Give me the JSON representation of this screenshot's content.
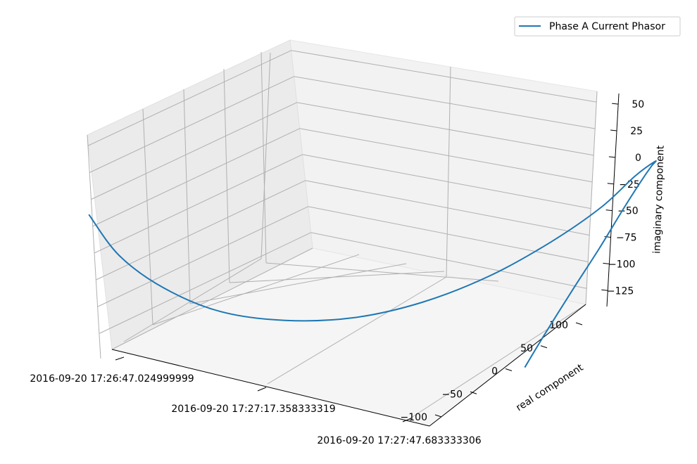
{
  "chart_data": {
    "type": "line",
    "projection": "3d",
    "xlabel": "",
    "ylabel": "real component",
    "zlabel": "imaginary component",
    "x_ticks": [
      "2016-09-20 17:26:47.024999999",
      "2016-09-20 17:27:17.358333319",
      "2016-09-20 17:27:47.683333306"
    ],
    "y_ticks": [
      "-100",
      "-50",
      "0",
      "50",
      "100"
    ],
    "z_ticks": [
      "-125",
      "-100",
      "-75",
      "-50",
      "-25",
      "0",
      "25",
      "50"
    ],
    "legend_position": "top-right",
    "grid": true,
    "series": [
      {
        "name": "Phase A Current Phasor",
        "color": "#1f77b4",
        "points": [
          {
            "time": "2016-09-20 17:26:47.025",
            "real": -123,
            "imag": -1
          },
          {
            "time": "2016-09-20 17:26:51.5",
            "real": -116,
            "imag": -38
          },
          {
            "time": "2016-09-20 17:26:57",
            "real": -100,
            "imag": -70
          },
          {
            "time": "2016-09-20 17:27:03",
            "real": -75,
            "imag": -97
          },
          {
            "time": "2016-09-20 17:27:09",
            "real": -42,
            "imag": -114
          },
          {
            "time": "2016-09-20 17:27:15",
            "real": -5,
            "imag": -122
          },
          {
            "time": "2016-09-20 17:27:21",
            "real": 32,
            "imag": -118
          },
          {
            "time": "2016-09-20 17:27:27",
            "real": 68,
            "imag": -103
          },
          {
            "time": "2016-09-20 17:27:33",
            "real": 97,
            "imag": -78
          },
          {
            "time": "2016-09-20 17:27:39",
            "real": 116,
            "imag": -47
          },
          {
            "time": "2016-09-20 17:27:44",
            "real": 124,
            "imag": -15
          },
          {
            "time": "2016-09-20 17:27:47.68",
            "real": 125,
            "imag": 3
          },
          {
            "time": "2016-09-20 17:27:47.69",
            "real": 121,
            "imag": 0
          },
          {
            "time": "2016-09-20 17:27:47.70",
            "real": 112,
            "imag": -8
          },
          {
            "time": "2016-09-20 17:27:47.71",
            "real": 95,
            "imag": -25
          },
          {
            "time": "2016-09-20 17:27:47.72",
            "real": 70,
            "imag": -52
          },
          {
            "time": "2016-09-20 17:27:47.73",
            "real": 42,
            "imag": -80
          },
          {
            "time": "2016-09-20 17:27:47.74",
            "real": 15,
            "imag": -108
          },
          {
            "time": "2016-09-20 17:27:47.75",
            "real": -5,
            "imag": -130
          }
        ]
      }
    ]
  },
  "legend": {
    "label": "Phase A Current Phasor",
    "color": "#1f77b4"
  }
}
